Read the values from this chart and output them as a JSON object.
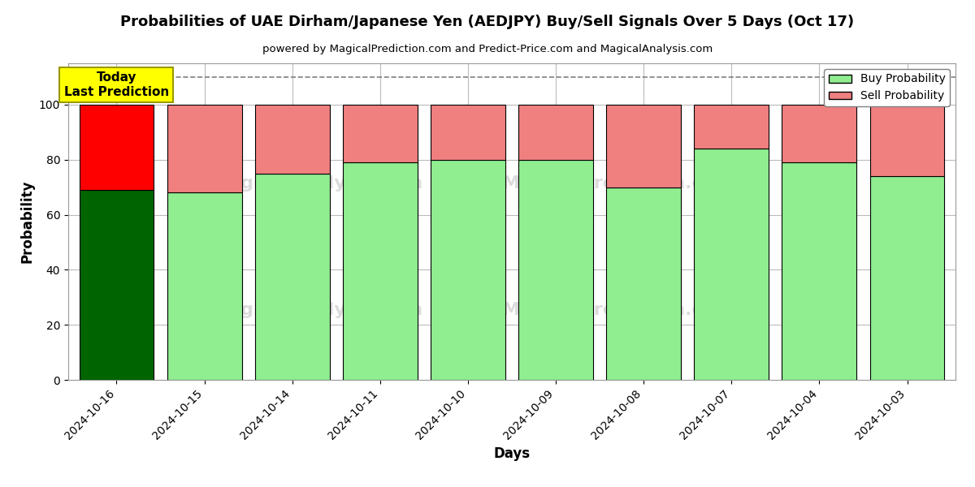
{
  "title": "Probabilities of UAE Dirham/Japanese Yen (AEDJPY) Buy/Sell Signals Over 5 Days (Oct 17)",
  "subtitle": "powered by MagicalPrediction.com and Predict-Price.com and MagicalAnalysis.com",
  "xlabel": "Days",
  "ylabel": "Probability",
  "dates": [
    "2024-10-16",
    "2024-10-15",
    "2024-10-14",
    "2024-10-11",
    "2024-10-10",
    "2024-10-09",
    "2024-10-08",
    "2024-10-07",
    "2024-10-04",
    "2024-10-03"
  ],
  "buy_values": [
    69,
    68,
    75,
    79,
    80,
    80,
    70,
    84,
    79,
    74
  ],
  "sell_values": [
    31,
    32,
    25,
    21,
    20,
    20,
    30,
    16,
    21,
    26
  ],
  "buy_colors": [
    "#006400",
    "#90EE90",
    "#90EE90",
    "#90EE90",
    "#90EE90",
    "#90EE90",
    "#90EE90",
    "#90EE90",
    "#90EE90",
    "#90EE90"
  ],
  "sell_colors": [
    "#FF0000",
    "#F08080",
    "#F08080",
    "#F08080",
    "#F08080",
    "#F08080",
    "#F08080",
    "#F08080",
    "#F08080",
    "#F08080"
  ],
  "today_box_color": "#FFFF00",
  "today_label": "Today\nLast Prediction",
  "dashed_line_y": 110,
  "ylim": [
    0,
    115
  ],
  "yticks": [
    0,
    20,
    40,
    60,
    80,
    100
  ],
  "legend_buy_color": "#90EE90",
  "legend_sell_color": "#F08080",
  "bg_color": "#ffffff",
  "grid_color": "#bbbbbb",
  "bar_edge_color": "#000000",
  "bar_width": 0.85
}
